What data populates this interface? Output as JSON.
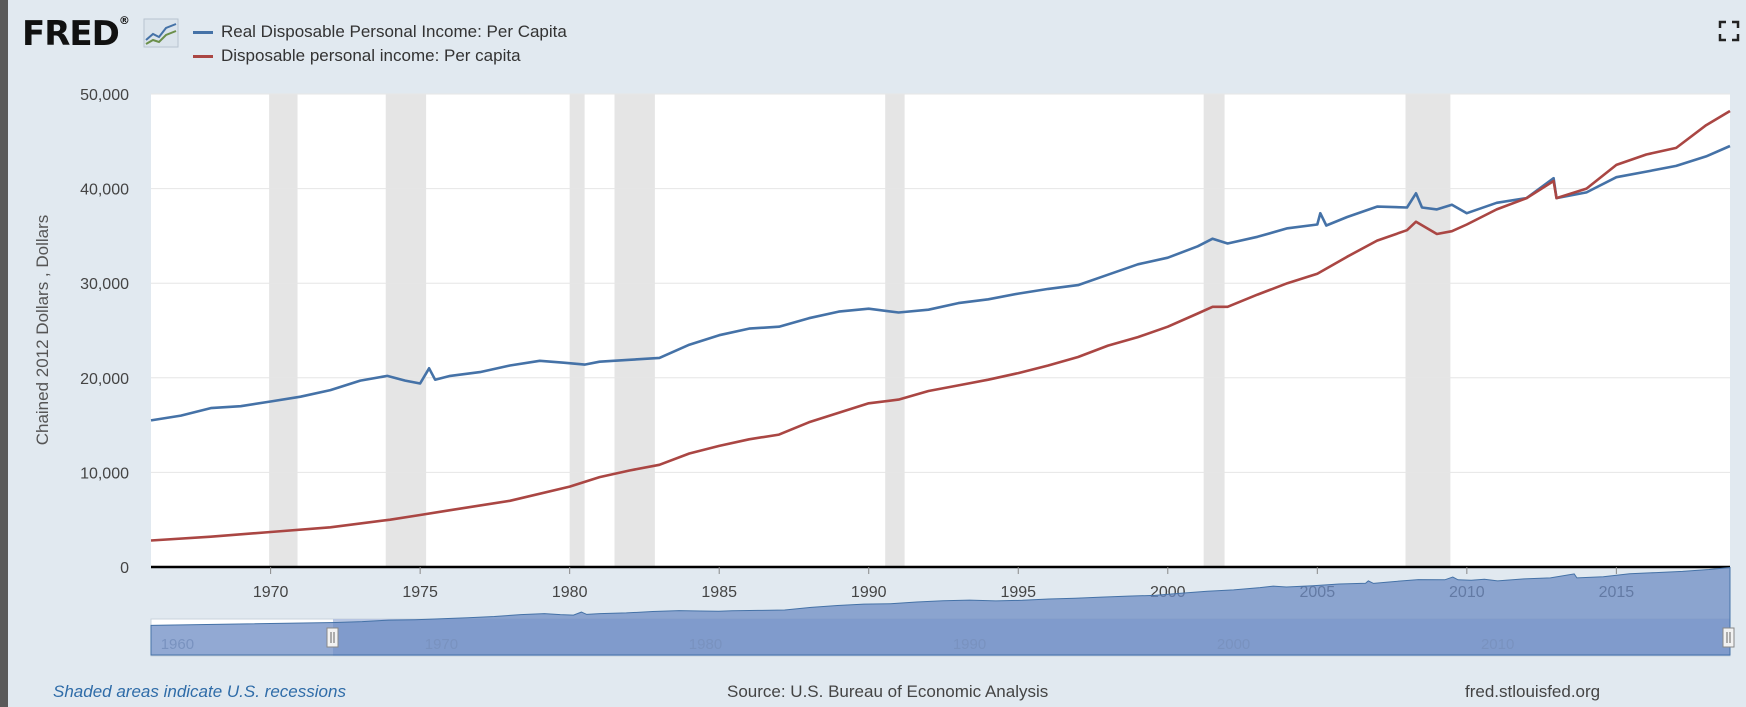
{
  "header": {
    "logo_text": "FRED",
    "logo_mark": "®",
    "icons": [
      "fred-chart-logo-icon",
      "fullscreen-expand-icon"
    ]
  },
  "legend": [
    {
      "label": "Real Disposable Personal Income: Per Capita",
      "color": "#4572a7"
    },
    {
      "label": "Disposable personal income: Per capita",
      "color": "#aa4643"
    }
  ],
  "footer": {
    "note": "Shaded areas indicate U.S. recessions",
    "source": "Source: U.S. Bureau of Economic Analysis",
    "site": "fred.stlouisfed.org"
  },
  "chart_data": {
    "type": "line",
    "ylabel": "Chained 2012 Dollars , Dollars",
    "xlabel": "",
    "xlim": [
      1966.0,
      2018.8
    ],
    "ylim": [
      0,
      50000
    ],
    "y_ticks": [
      0,
      10000,
      20000,
      30000,
      40000,
      50000
    ],
    "y_tick_labels": [
      "0",
      "10,000",
      "20,000",
      "30,000",
      "40,000",
      "50,000"
    ],
    "x_ticks": [
      1970,
      1975,
      1980,
      1985,
      1990,
      1995,
      2000,
      2005,
      2010,
      2015
    ],
    "x_tick_labels": [
      "1970",
      "1975",
      "1980",
      "1985",
      "1990",
      "1995",
      "2000",
      "2005",
      "2010",
      "2015"
    ],
    "grid": true,
    "legend_position": "top-left",
    "recessions": [
      [
        1969.95,
        1970.9
      ],
      [
        1973.85,
        1975.2
      ],
      [
        1980.0,
        1980.5
      ],
      [
        1981.5,
        1982.85
      ],
      [
        1990.55,
        1991.2
      ],
      [
        2001.2,
        2001.9
      ],
      [
        2007.95,
        2009.45
      ]
    ],
    "series": [
      {
        "name": "Real Disposable Personal Income: Per Capita",
        "color": "#4572a7",
        "x": [
          1966.0,
          1967.0,
          1968.0,
          1969.0,
          1970.0,
          1971.0,
          1972.0,
          1973.0,
          1973.9,
          1974.5,
          1975.0,
          1975.3,
          1975.5,
          1976.0,
          1977.0,
          1978.0,
          1979.0,
          1979.8,
          1980.5,
          1981.0,
          1982.0,
          1983.0,
          1984.0,
          1985.0,
          1986.0,
          1987.0,
          1988.0,
          1989.0,
          1990.0,
          1991.0,
          1992.0,
          1993.0,
          1994.0,
          1995.0,
          1996.0,
          1997.0,
          1998.0,
          1999.0,
          2000.0,
          2001.0,
          2001.5,
          2002.0,
          2003.0,
          2004.0,
          2005.0,
          2005.1,
          2005.3,
          2006.0,
          2007.0,
          2008.0,
          2008.3,
          2008.5,
          2009.0,
          2009.5,
          2010.0,
          2011.0,
          2012.0,
          2012.9,
          2013.0,
          2014.0,
          2015.0,
          2016.0,
          2017.0,
          2018.0,
          2018.8
        ],
        "values": [
          15500,
          16000,
          16800,
          17000,
          17500,
          18000,
          18700,
          19700,
          20200,
          19700,
          19400,
          21000,
          19800,
          20200,
          20600,
          21300,
          21800,
          21600,
          21400,
          21700,
          21900,
          22100,
          23500,
          24500,
          25200,
          25400,
          26300,
          27000,
          27300,
          26900,
          27200,
          27900,
          28300,
          28900,
          29400,
          29800,
          30900,
          32000,
          32700,
          33900,
          34700,
          34200,
          34900,
          35800,
          36200,
          37400,
          36100,
          37000,
          38100,
          38000,
          39500,
          38000,
          37800,
          38300,
          37400,
          38500,
          39000,
          41100,
          39000,
          39600,
          41200,
          41800,
          42400,
          43400,
          44500
        ]
      },
      {
        "name": "Disposable personal income: Per capita",
        "color": "#aa4643",
        "x": [
          1966.0,
          1968.0,
          1970.0,
          1972.0,
          1974.0,
          1975.0,
          1976.0,
          1978.0,
          1980.0,
          1981.0,
          1982.0,
          1983.0,
          1984.0,
          1985.0,
          1986.0,
          1987.0,
          1988.0,
          1989.0,
          1990.0,
          1991.0,
          1992.0,
          1993.0,
          1994.0,
          1995.0,
          1996.0,
          1997.0,
          1998.0,
          1999.0,
          2000.0,
          2001.0,
          2001.5,
          2002.0,
          2003.0,
          2004.0,
          2005.0,
          2006.0,
          2007.0,
          2008.0,
          2008.3,
          2009.0,
          2009.5,
          2010.0,
          2011.0,
          2012.0,
          2012.9,
          2013.0,
          2014.0,
          2015.0,
          2016.0,
          2017.0,
          2018.0,
          2018.8
        ],
        "values": [
          2800,
          3200,
          3700,
          4200,
          5000,
          5500,
          6000,
          7000,
          8500,
          9500,
          10200,
          10800,
          12000,
          12800,
          13500,
          14000,
          15300,
          16300,
          17300,
          17700,
          18600,
          19200,
          19800,
          20500,
          21300,
          22200,
          23400,
          24300,
          25400,
          26800,
          27500,
          27500,
          28800,
          30000,
          31000,
          32800,
          34500,
          35600,
          36500,
          35200,
          35500,
          36200,
          37800,
          39000,
          40800,
          39000,
          40000,
          42500,
          43600,
          44300,
          46700,
          48200
        ]
      }
    ],
    "navigator": {
      "x_tick_labels": [
        "1960",
        "1970",
        "1980",
        "1990",
        "2000",
        "2010"
      ],
      "x_ticks": [
        1960,
        1970,
        1980,
        1990,
        2000,
        2010
      ],
      "xlim": [
        1959.0,
        2018.8
      ],
      "selected": [
        1966.0,
        2018.8
      ]
    }
  }
}
